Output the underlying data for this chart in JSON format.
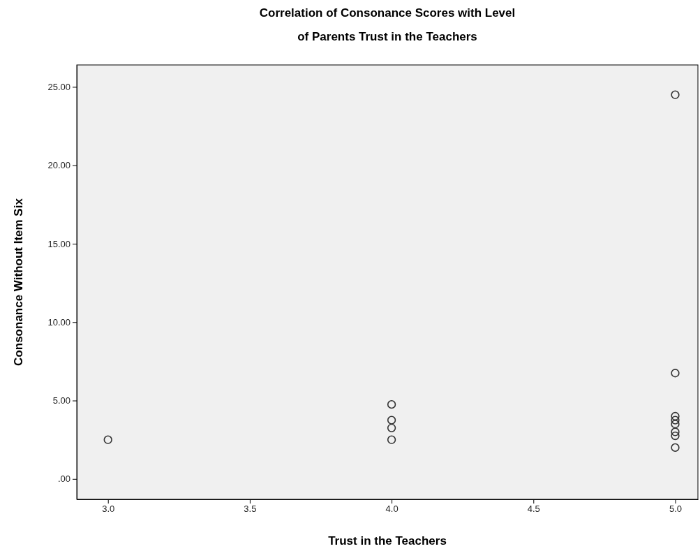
{
  "chart_data": {
    "type": "scatter",
    "title": "Correlation of Consonance Scores with Level of Parents Trust in the Teachers",
    "xlabel": "Trust in the Teachers",
    "ylabel": "Consonance Without Item Six",
    "series": [
      {
        "color": "#333333",
        "x": [
          3,
          4,
          4,
          4,
          4,
          5,
          5,
          5,
          5,
          5,
          5,
          5,
          5
        ],
        "values": [
          2.5,
          4.75,
          3.75,
          3.25,
          2.5,
          24.5,
          6.75,
          4,
          3.75,
          3.5,
          3,
          2.75,
          2
        ]
      }
    ],
    "xlim": [
      2.89,
      5.08
    ],
    "ylim": [
      -1.3,
      26.4
    ],
    "xticks": [
      {
        "value": 3,
        "label": "3.0"
      },
      {
        "value": 3.5,
        "label": "3.5"
      },
      {
        "value": 4,
        "label": "4.0"
      },
      {
        "value": 4.5,
        "label": "4.5"
      },
      {
        "value": 5,
        "label": "5.0"
      }
    ],
    "yticks": [
      {
        "value": 0,
        "label": ".00"
      },
      {
        "value": 5,
        "label": "5.00"
      },
      {
        "value": 10,
        "label": "10.00"
      },
      {
        "value": 15,
        "label": "15.00"
      },
      {
        "value": 20,
        "label": "20.00"
      },
      {
        "value": 25,
        "label": "25.00"
      }
    ],
    "grid": false,
    "marker": "circle"
  }
}
